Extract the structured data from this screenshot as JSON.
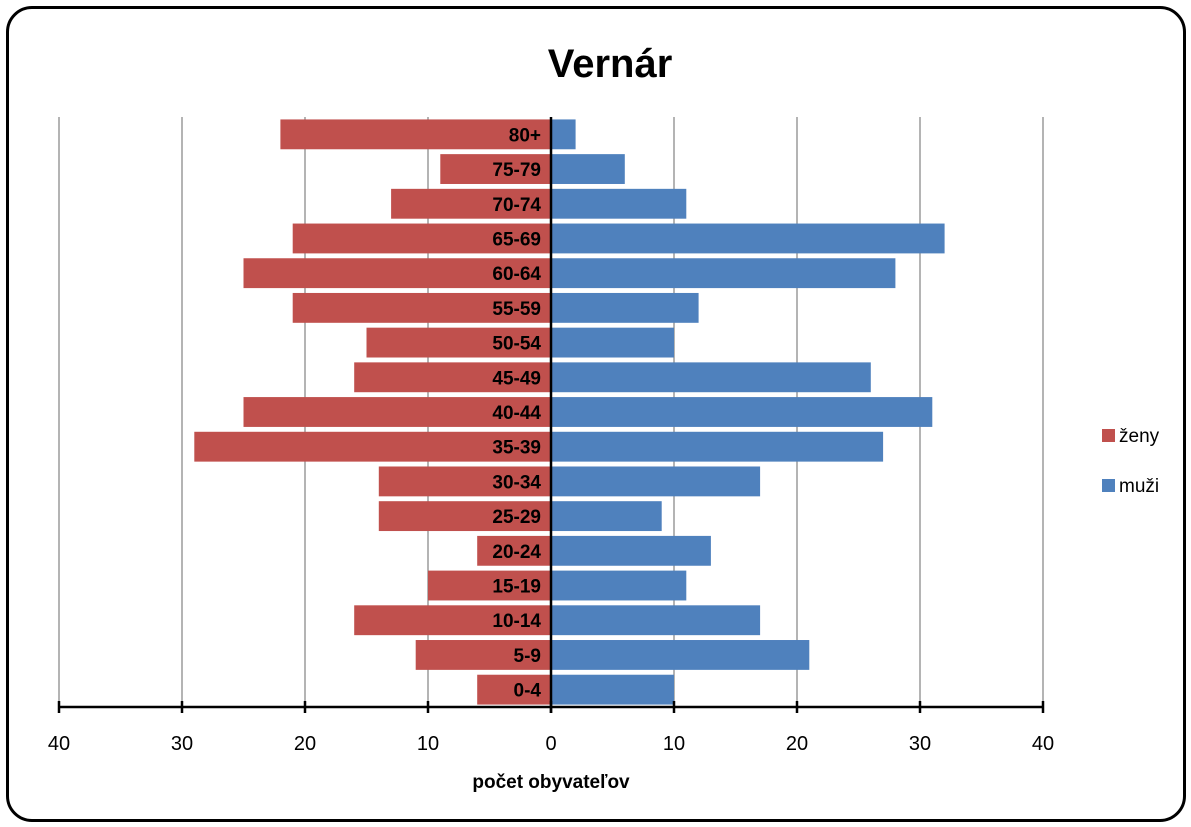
{
  "chart_data": {
    "type": "bar",
    "orientation": "horizontal",
    "subtype": "population-pyramid",
    "title": "Vernár",
    "xlabel": "počet obyvateľov",
    "ylabel": "",
    "xlim": [
      -40,
      40
    ],
    "x_ticks": [
      -40,
      -30,
      -20,
      -10,
      0,
      10,
      20,
      30,
      40
    ],
    "x_tick_labels": [
      "40",
      "30",
      "20",
      "10",
      "0",
      "10",
      "20",
      "30",
      "40"
    ],
    "grid": true,
    "legend_position": "right",
    "categories": [
      "0-4",
      "5-9",
      "10-14",
      "15-19",
      "20-24",
      "25-29",
      "30-34",
      "35-39",
      "40-44",
      "45-49",
      "50-54",
      "55-59",
      "60-64",
      "65-69",
      "70-74",
      "75-79",
      "80+"
    ],
    "series": [
      {
        "name": "ženy",
        "side": "left",
        "color": "#c0504d",
        "values": [
          6,
          11,
          16,
          10,
          6,
          14,
          14,
          29,
          25,
          16,
          15,
          21,
          25,
          21,
          13,
          9,
          22
        ]
      },
      {
        "name": "muži",
        "side": "right",
        "color": "#4f81bd",
        "values": [
          10,
          21,
          17,
          11,
          13,
          9,
          17,
          27,
          31,
          26,
          10,
          12,
          28,
          32,
          11,
          6,
          2
        ]
      }
    ]
  }
}
